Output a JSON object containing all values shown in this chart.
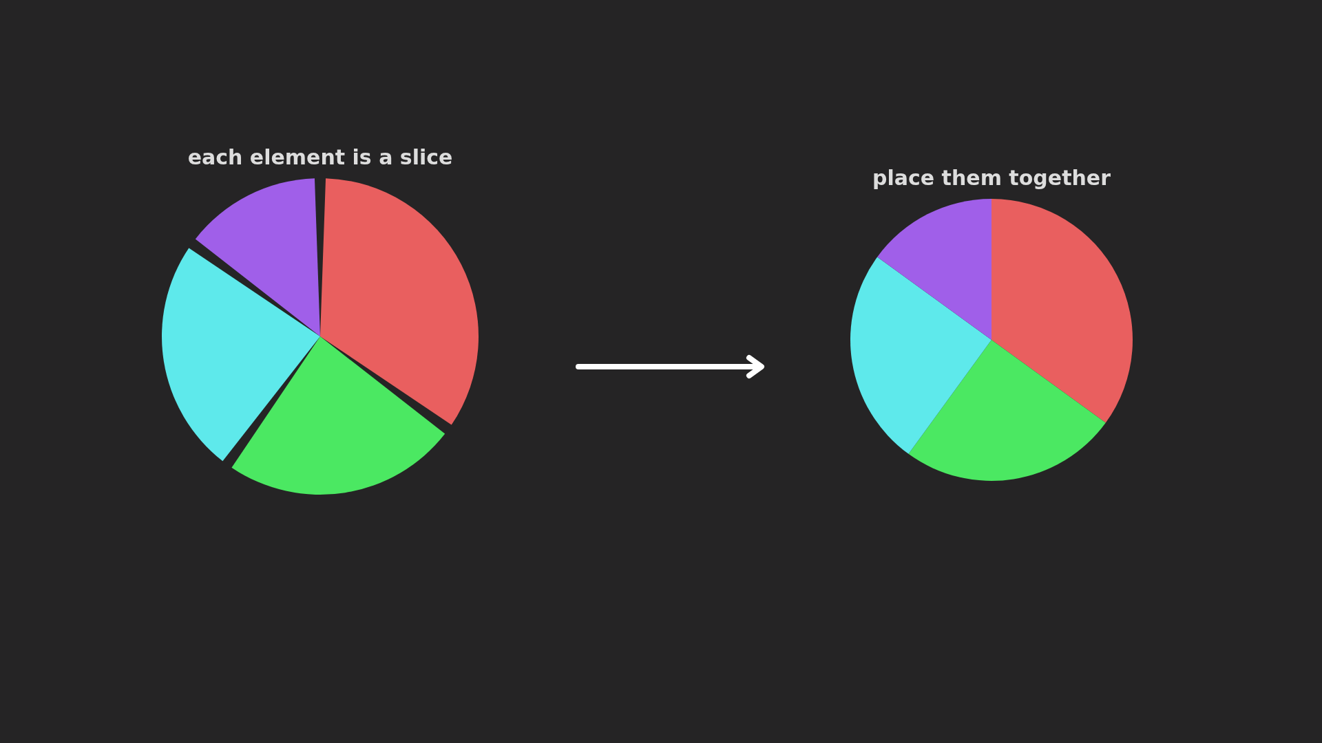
{
  "chart_data": [
    {
      "type": "pie",
      "title": "each element is a slice",
      "categories": [
        null,
        null,
        null,
        null
      ],
      "values": [
        35,
        25,
        25,
        15
      ],
      "colors": [
        "#e95f5f",
        "#4be862",
        "#5ee9eb",
        "#a05fe9"
      ]
    },
    {
      "type": "pie",
      "title": "place them together",
      "categories": [
        null,
        null,
        null,
        null
      ],
      "values": [
        35,
        25,
        25,
        15
      ],
      "colors": [
        "#e95f5f",
        "#4be862",
        "#5ee9eb",
        "#a05fe9"
      ]
    }
  ]
}
